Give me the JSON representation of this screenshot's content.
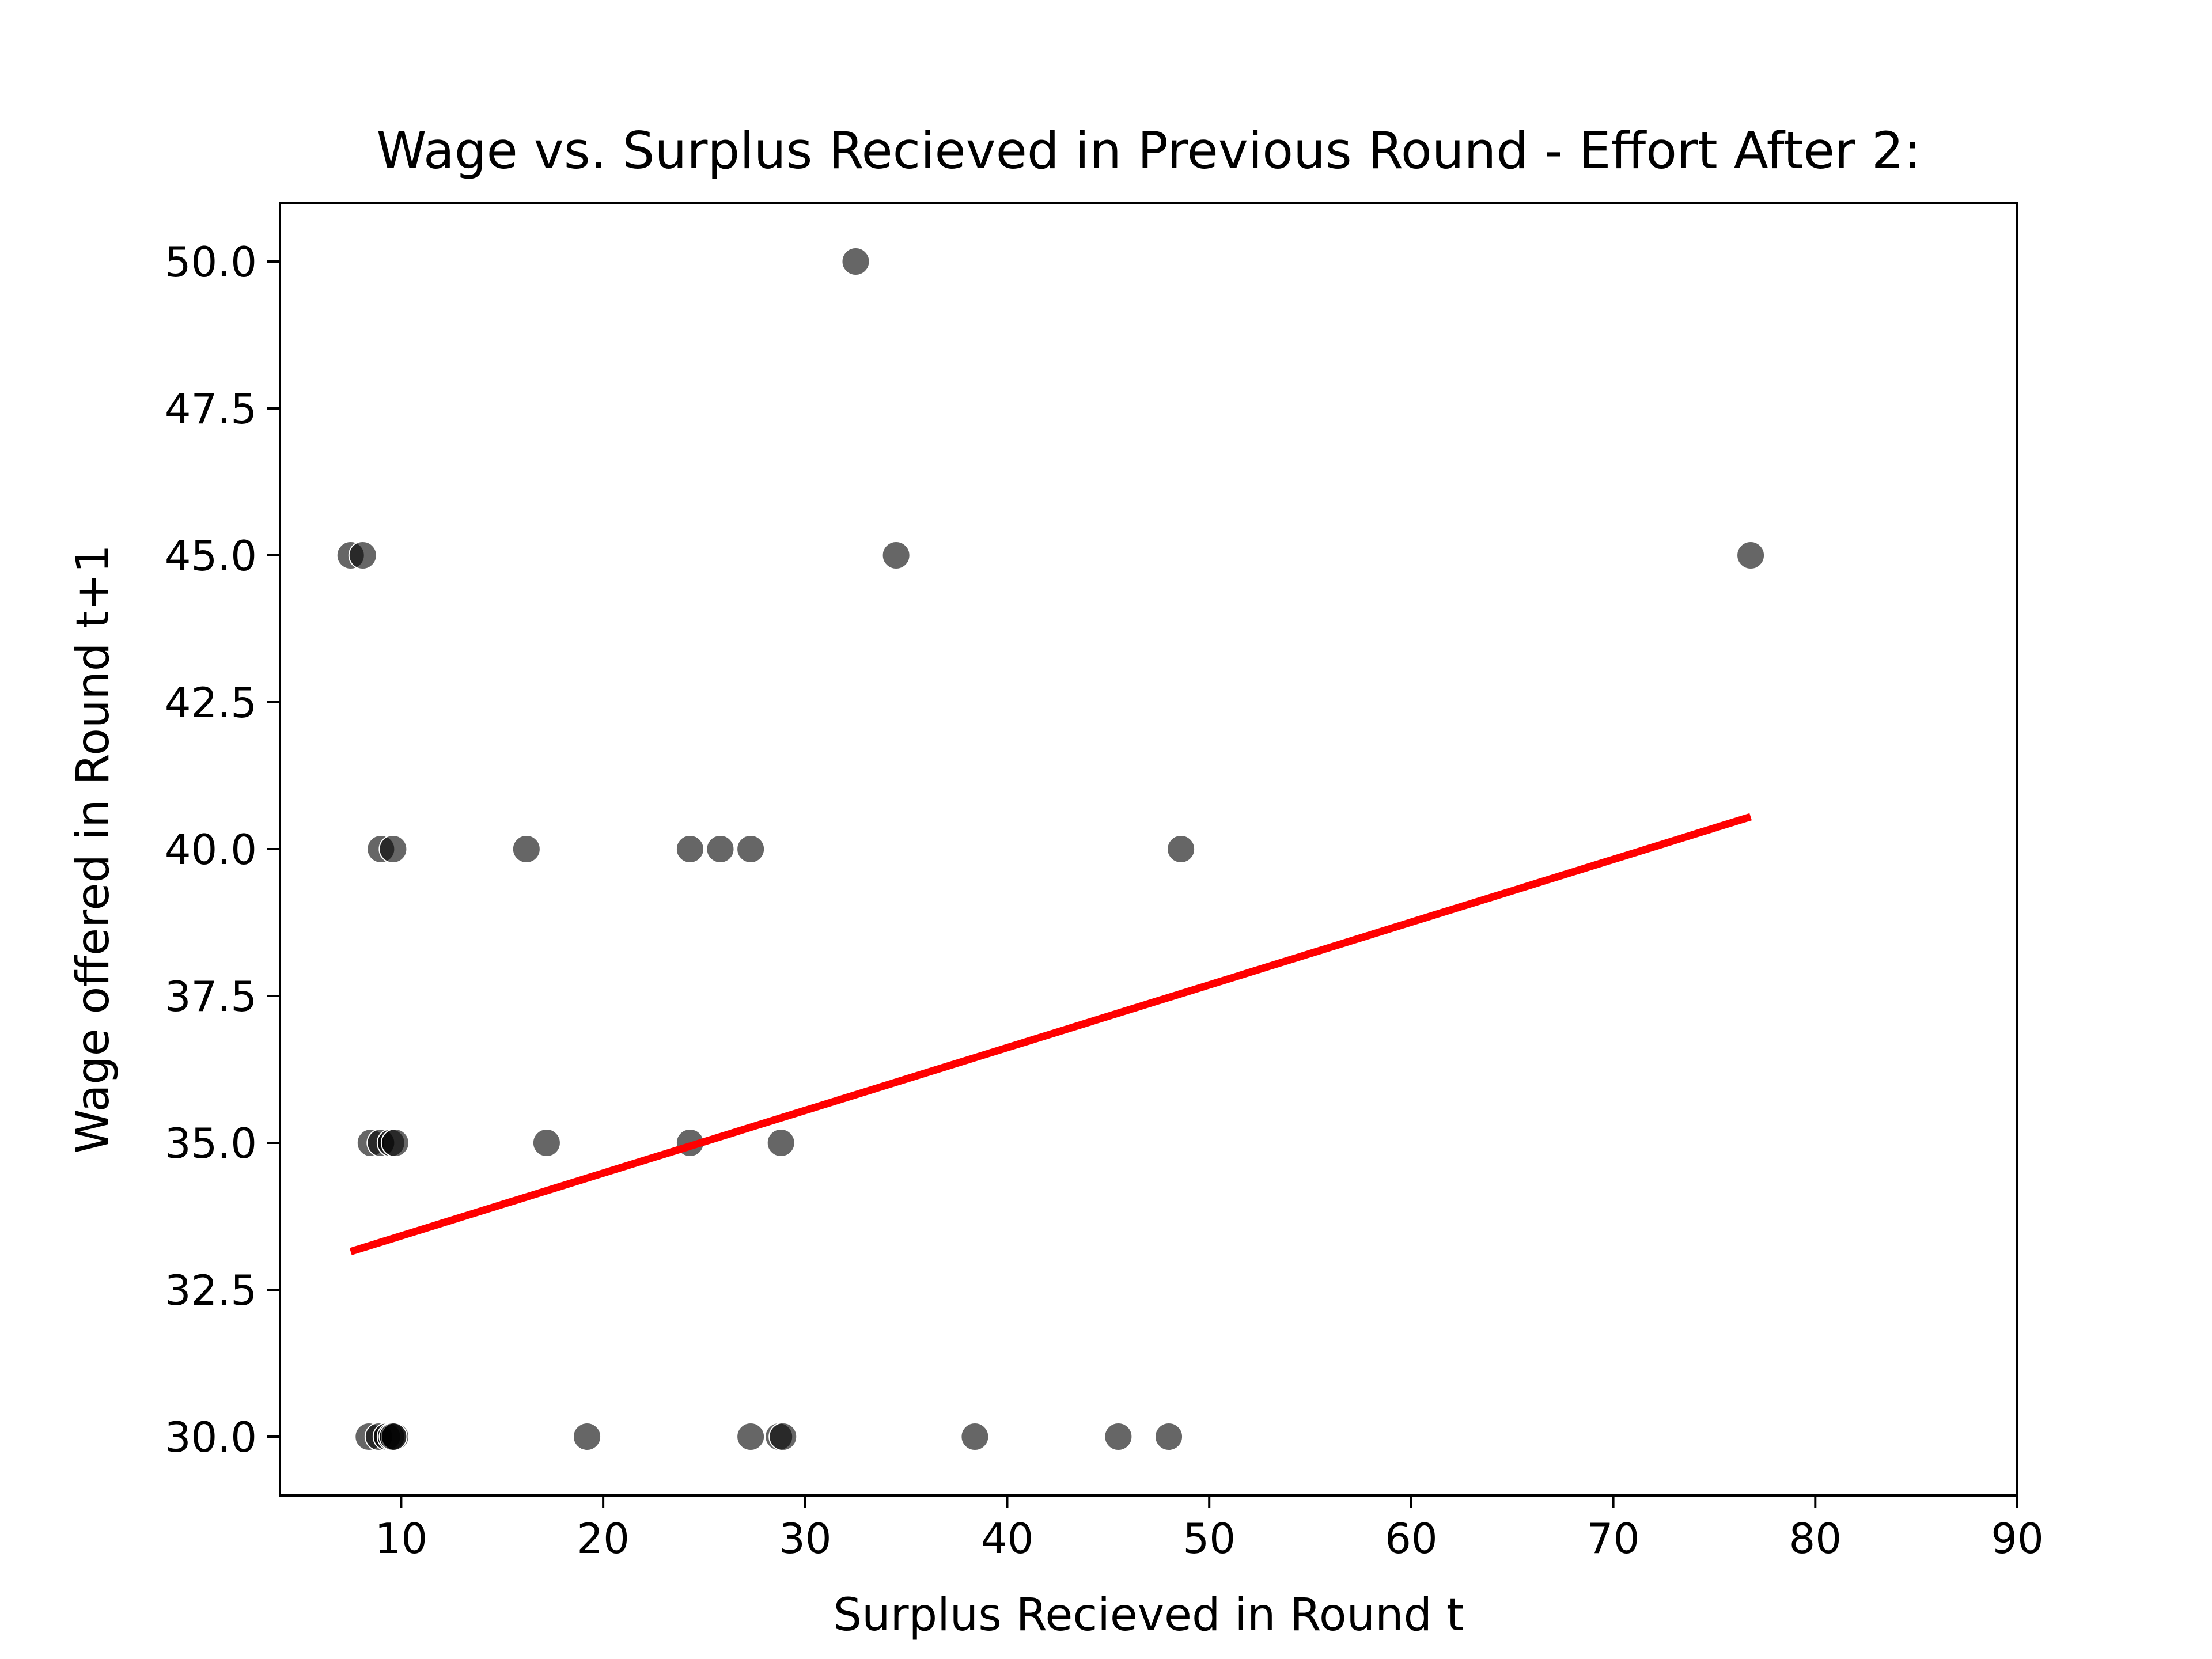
{
  "chart_data": {
    "type": "scatter",
    "title": "Wage vs. Surplus Recieved in Previous Round - Effort After 2:",
    "xlabel": "Surplus Recieved in Round t",
    "ylabel": "Wage offered in Round t+1",
    "xlim": [
      4,
      90
    ],
    "ylim": [
      29,
      51
    ],
    "xticks": [
      10,
      20,
      30,
      40,
      50,
      60,
      70,
      80,
      90
    ],
    "xtick_labels": [
      "10",
      "20",
      "30",
      "40",
      "50",
      "60",
      "70",
      "80",
      "90"
    ],
    "yticks": [
      30.0,
      32.5,
      35.0,
      37.5,
      40.0,
      42.5,
      45.0,
      47.5,
      50.0
    ],
    "ytick_labels": [
      "30.0",
      "32.5",
      "35.0",
      "37.5",
      "40.0",
      "42.5",
      "45.0",
      "47.5",
      "50.0"
    ],
    "grid": false,
    "legend": "none",
    "point_color": "#000000",
    "point_opacity": 0.6,
    "points": [
      {
        "x": 32.5,
        "y": 50
      },
      {
        "x": 7.5,
        "y": 45
      },
      {
        "x": 8.1,
        "y": 45
      },
      {
        "x": 34.5,
        "y": 45
      },
      {
        "x": 76.8,
        "y": 45
      },
      {
        "x": 9.0,
        "y": 40
      },
      {
        "x": 9.6,
        "y": 40
      },
      {
        "x": 16.2,
        "y": 40
      },
      {
        "x": 24.3,
        "y": 40
      },
      {
        "x": 25.8,
        "y": 40
      },
      {
        "x": 27.3,
        "y": 40
      },
      {
        "x": 48.6,
        "y": 40
      },
      {
        "x": 8.5,
        "y": 35
      },
      {
        "x": 9.0,
        "y": 35
      },
      {
        "x": 9.5,
        "y": 35
      },
      {
        "x": 9.7,
        "y": 35
      },
      {
        "x": 17.2,
        "y": 35
      },
      {
        "x": 24.3,
        "y": 35
      },
      {
        "x": 28.8,
        "y": 35
      },
      {
        "x": 8.4,
        "y": 30
      },
      {
        "x": 8.9,
        "y": 30
      },
      {
        "x": 9.3,
        "y": 30
      },
      {
        "x": 9.5,
        "y": 30
      },
      {
        "x": 9.7,
        "y": 30
      },
      {
        "x": 9.6,
        "y": 30
      },
      {
        "x": 19.2,
        "y": 30
      },
      {
        "x": 27.3,
        "y": 30
      },
      {
        "x": 28.7,
        "y": 30
      },
      {
        "x": 28.9,
        "y": 30
      },
      {
        "x": 38.4,
        "y": 30
      },
      {
        "x": 45.5,
        "y": 30
      },
      {
        "x": 48.0,
        "y": 30
      }
    ],
    "regression_line": {
      "color": "#ff0000",
      "x": [
        7.5,
        76.8
      ],
      "y": [
        33.15,
        40.55
      ]
    }
  }
}
